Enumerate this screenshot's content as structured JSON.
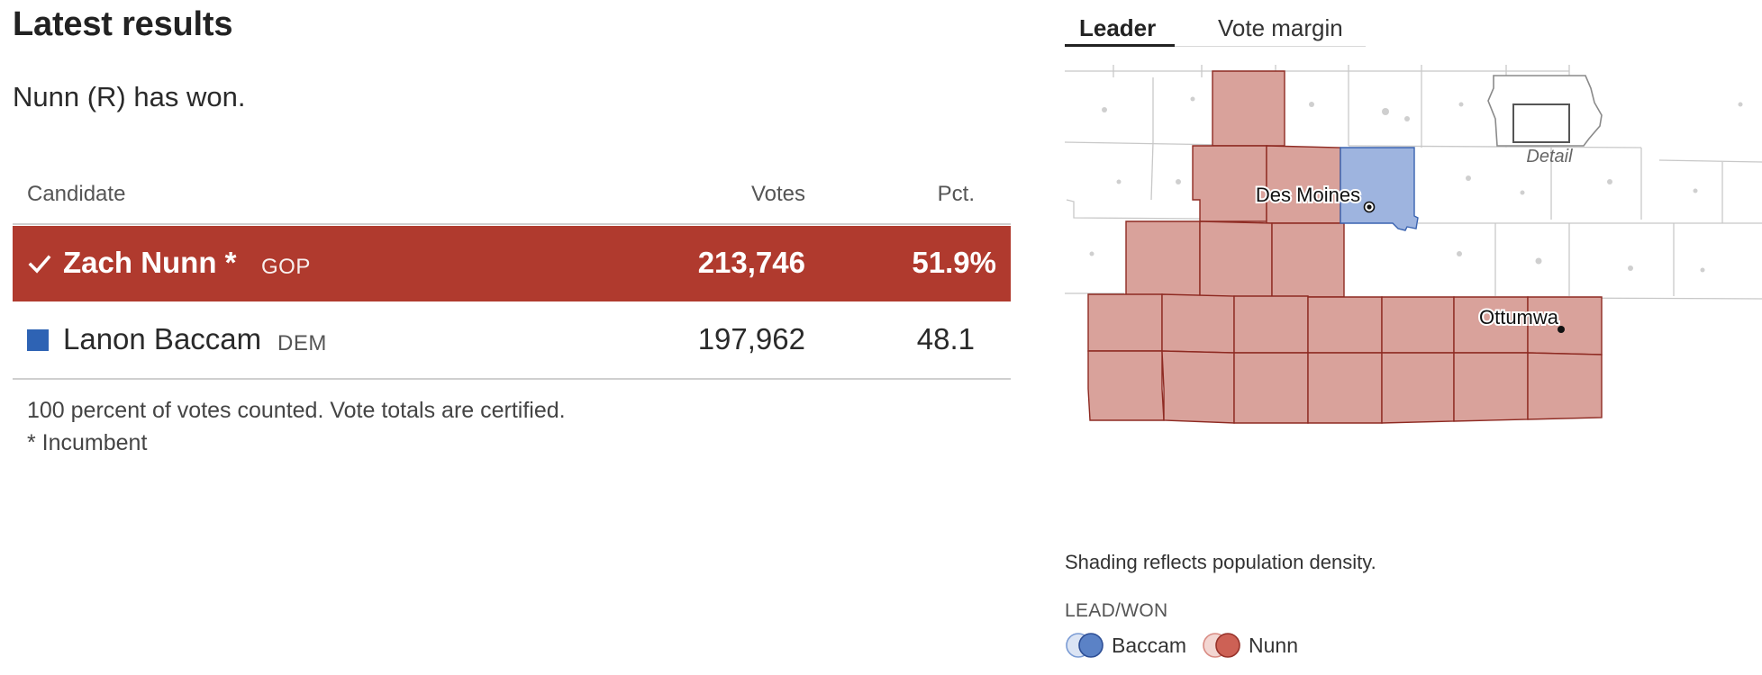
{
  "header": {
    "title": "Latest results",
    "status": "Nunn (R) has won."
  },
  "table": {
    "columns": {
      "candidate": "Candidate",
      "votes": "Votes",
      "pct": "Pct."
    },
    "rows": [
      {
        "name": "Zach Nunn *",
        "party": "GOP",
        "votes": "213,746",
        "pct": "51.9%",
        "winner": true,
        "color": "#b03a2e"
      },
      {
        "name": "Lanon Baccam",
        "party": "DEM",
        "votes": "197,962",
        "pct": "48.1",
        "winner": false,
        "color": "#2e63b4"
      }
    ],
    "notes": [
      "100 percent of votes counted. Vote totals are certified.",
      "* Incumbent"
    ]
  },
  "map": {
    "tabs": [
      {
        "label": "Leader",
        "active": true
      },
      {
        "label": "Vote margin",
        "active": false
      }
    ],
    "cities": [
      "Des Moines",
      "Ottumwa"
    ],
    "inset_label": "Detail",
    "shading_note": "Shading reflects population density.",
    "legend": {
      "title": "LEAD/WON",
      "items": [
        {
          "label": "Baccam",
          "color": "#5b82c6"
        },
        {
          "label": "Nunn",
          "color": "#cd6155"
        }
      ]
    },
    "colors": {
      "nunn_fill": "#d9a29b",
      "nunn_stroke": "#8e2a22",
      "baccam_fill": "#9eb4df",
      "baccam_stroke": "#3a63b0"
    }
  }
}
